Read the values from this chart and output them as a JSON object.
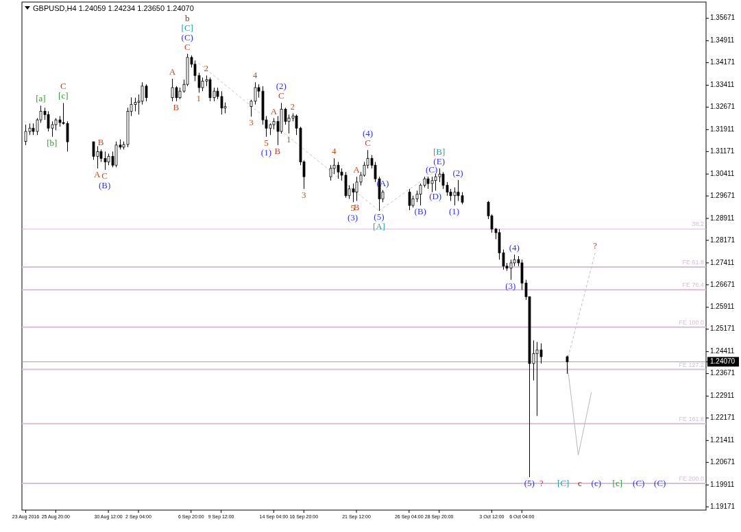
{
  "chart_data": {
    "type": "candlestick",
    "title": "GBPUSD,H4  1.24059 1.24234 1.23650 1.24070",
    "x": [
      "2016-08-23T04:00",
      "2016-08-23T12:00",
      "2016-08-23T20:00",
      "2016-08-24T04:00",
      "2016-08-24T12:00",
      "2016-08-24T20:00",
      "2016-08-25T04:00",
      "2016-08-25T12:00",
      "2016-08-25T20:00",
      "2016-08-26T04:00",
      "2016-08-26T12:00",
      "2016-08-26T20:00",
      "2016-08-29T04:00",
      "2016-08-29T12:00",
      "2016-08-29T20:00",
      "2016-08-30T04:00",
      "2016-08-30T12:00",
      "2016-08-30T20:00",
      "2016-08-31T04:00",
      "2016-08-31T12:00",
      "2016-08-31T20:00",
      "2016-09-01T04:00",
      "2016-09-01T12:00",
      "2016-09-01T20:00",
      "2016-09-02T04:00",
      "2016-09-02T12:00",
      "2016-09-02T20:00",
      "2016-09-05T04:00",
      "2016-09-05T12:00",
      "2016-09-05T20:00",
      "2016-09-06T04:00",
      "2016-09-06T12:00",
      "2016-09-06T20:00",
      "2016-09-07T04:00",
      "2016-09-07T12:00",
      "2016-09-07T20:00",
      "2016-09-08T04:00",
      "2016-09-08T12:00",
      "2016-09-08T20:00",
      "2016-09-09T04:00",
      "2016-09-09T12:00",
      "2016-09-09T20:00",
      "2016-09-12T04:00",
      "2016-09-12T12:00",
      "2016-09-12T20:00",
      "2016-09-13T04:00",
      "2016-09-13T12:00",
      "2016-09-13T20:00",
      "2016-09-14T04:00",
      "2016-09-14T12:00",
      "2016-09-14T20:00",
      "2016-09-15T04:00",
      "2016-09-15T12:00",
      "2016-09-15T20:00",
      "2016-09-16T04:00",
      "2016-09-16T12:00",
      "2016-09-16T20:00",
      "2016-09-19T04:00",
      "2016-09-19T12:00",
      "2016-09-19T20:00",
      "2016-09-20T04:00",
      "2016-09-20T12:00",
      "2016-09-20T20:00",
      "2016-09-21T04:00",
      "2016-09-21T12:00",
      "2016-09-21T20:00",
      "2016-09-22T04:00",
      "2016-09-22T12:00",
      "2016-09-22T20:00",
      "2016-09-23T04:00",
      "2016-09-23T12:00",
      "2016-09-23T20:00",
      "2016-09-26T04:00",
      "2016-09-26T12:00",
      "2016-09-26T20:00",
      "2016-09-27T04:00",
      "2016-09-27T12:00",
      "2016-09-27T20:00",
      "2016-09-28T04:00",
      "2016-09-28T12:00",
      "2016-09-28T20:00",
      "2016-09-29T04:00",
      "2016-09-29T12:00",
      "2016-09-29T20:00",
      "2016-09-30T04:00",
      "2016-09-30T12:00",
      "2016-09-30T20:00",
      "2016-10-03T04:00",
      "2016-10-03T12:00",
      "2016-10-03T20:00",
      "2016-10-04T04:00",
      "2016-10-04T12:00",
      "2016-10-04T20:00",
      "2016-10-05T04:00",
      "2016-10-05T12:00",
      "2016-10-05T20:00",
      "2016-10-06T04:00",
      "2016-10-06T12:00",
      "2016-10-06T20:00",
      "2016-10-07T04:00",
      "2016-10-07T12:00",
      "2016-10-07T20:00",
      "2016-10-10T04:00"
    ],
    "ohlc": [
      [
        1.3151,
        1.3208,
        1.3139,
        1.3185
      ],
      [
        1.3185,
        1.3212,
        1.3173,
        1.3196
      ],
      [
        1.3196,
        1.3212,
        1.3173,
        1.3185
      ],
      [
        1.3185,
        1.323,
        1.3173,
        1.3224
      ],
      [
        1.3224,
        1.3272,
        1.3214,
        1.3253
      ],
      [
        1.3253,
        1.3265,
        1.3224,
        1.3242
      ],
      [
        1.3242,
        1.3253,
        1.3185,
        1.3196
      ],
      [
        1.3196,
        1.3219,
        1.3167,
        1.3208
      ],
      [
        1.3208,
        1.323,
        1.3189,
        1.3224
      ],
      [
        1.3224,
        1.3237,
        1.3201,
        1.3215
      ],
      [
        1.3215,
        1.3281,
        1.3208,
        1.3212
      ],
      [
        1.3212,
        1.3219,
        1.3117,
        1.315
      ],
      [
        1.315,
        1.3151,
        1.3089,
        1.3101
      ],
      [
        1.3101,
        1.3135,
        1.306,
        1.3117
      ],
      [
        1.3117,
        1.3124,
        1.3082,
        1.3094
      ],
      [
        1.3094,
        1.3117,
        1.3055,
        1.3082
      ],
      [
        1.3082,
        1.311,
        1.3071,
        1.3101
      ],
      [
        1.3101,
        1.3117,
        1.3064,
        1.3071
      ],
      [
        1.3071,
        1.3151,
        1.3064,
        1.3139
      ],
      [
        1.3139,
        1.3158,
        1.3124,
        1.3132
      ],
      [
        1.3132,
        1.3151,
        1.3124,
        1.3141
      ],
      [
        1.3141,
        1.3265,
        1.3132,
        1.3253
      ],
      [
        1.3253,
        1.33,
        1.3237,
        1.3276
      ],
      [
        1.3276,
        1.3299,
        1.3253,
        1.3283
      ],
      [
        1.3283,
        1.331,
        1.3242,
        1.3287
      ],
      [
        1.3287,
        1.3351,
        1.3276,
        1.3338
      ],
      [
        1.3338,
        1.3344,
        1.3287,
        1.3299
      ],
      [
        1.3299,
        1.3363,
        1.3287,
        1.3333
      ],
      [
        1.3333,
        1.3338,
        1.3287,
        1.3299
      ],
      [
        1.3299,
        1.3333,
        1.3294,
        1.3321
      ],
      [
        1.3321,
        1.336,
        1.3316,
        1.3344
      ],
      [
        1.3344,
        1.3447,
        1.3338,
        1.3435
      ],
      [
        1.3435,
        1.3442,
        1.3401,
        1.3412
      ],
      [
        1.3412,
        1.3424,
        1.3355,
        1.3374
      ],
      [
        1.3374,
        1.3383,
        1.3316,
        1.3333
      ],
      [
        1.3333,
        1.3367,
        1.3321,
        1.3355
      ],
      [
        1.3355,
        1.3374,
        1.3338,
        1.336
      ],
      [
        1.336,
        1.3367,
        1.3287,
        1.3299
      ],
      [
        1.3299,
        1.3333,
        1.3287,
        1.3321
      ],
      [
        1.3321,
        1.3333,
        1.3294,
        1.3303
      ],
      [
        1.3303,
        1.3321,
        1.3242,
        1.3264
      ],
      [
        1.3264,
        1.3283,
        1.3246,
        1.3269
      ],
      [
        1.3269,
        1.3292,
        1.3235,
        1.3287
      ],
      [
        1.3287,
        1.3351,
        1.3276,
        1.3333
      ],
      [
        1.3333,
        1.3344,
        1.3299,
        1.3321
      ],
      [
        1.3321,
        1.3338,
        1.3208,
        1.3224
      ],
      [
        1.3224,
        1.3237,
        1.3167,
        1.3196
      ],
      [
        1.3196,
        1.3212,
        1.3173,
        1.3208
      ],
      [
        1.3208,
        1.323,
        1.3192,
        1.3219
      ],
      [
        1.3219,
        1.3237,
        1.3139,
        1.3185
      ],
      [
        1.3185,
        1.3281,
        1.3178,
        1.326
      ],
      [
        1.326,
        1.3265,
        1.3208,
        1.3219
      ],
      [
        1.3219,
        1.3242,
        1.3178,
        1.323
      ],
      [
        1.323,
        1.3246,
        1.3219,
        1.3237
      ],
      [
        1.3237,
        1.3242,
        1.3173,
        1.3196
      ],
      [
        1.3196,
        1.3201,
        1.3071,
        1.3082
      ],
      [
        1.3082,
        1.3087,
        1.2991,
        1.3032
      ],
      [
        1.3032,
        1.3071,
        1.3019,
        1.306
      ],
      [
        1.306,
        1.3094,
        1.3041,
        1.3071
      ],
      [
        1.3071,
        1.3082,
        1.3025,
        1.3048
      ],
      [
        1.3048,
        1.306,
        1.3019,
        1.3037
      ],
      [
        1.3037,
        1.3048,
        1.2961,
        1.2968
      ],
      [
        1.2968,
        1.3003,
        1.2957,
        1.2991
      ],
      [
        1.2991,
        1.3009,
        1.2946,
        1.298
      ],
      [
        1.298,
        1.3032,
        1.295,
        1.3014
      ],
      [
        1.3014,
        1.3048,
        1.3003,
        1.3037
      ],
      [
        1.3037,
        1.3082,
        1.3032,
        1.3071
      ],
      [
        1.3071,
        1.3122,
        1.306,
        1.3094
      ],
      [
        1.3094,
        1.3105,
        1.306,
        1.3071
      ],
      [
        1.3071,
        1.3082,
        1.3014,
        1.3025
      ],
      [
        1.3025,
        1.3032,
        1.2917,
        1.2957
      ],
      [
        1.2957,
        1.2987,
        1.2946,
        1.298
      ],
      [
        1.298,
        1.2991,
        1.2919,
        1.2935
      ],
      [
        1.2935,
        1.2968,
        1.2928,
        1.2957
      ],
      [
        1.2957,
        1.2985,
        1.2946,
        1.2973
      ],
      [
        1.2973,
        1.3009,
        1.2935,
        1.3003
      ],
      [
        1.3003,
        1.3032,
        1.2996,
        1.3025
      ],
      [
        1.3025,
        1.3032,
        1.2991,
        1.3009
      ],
      [
        1.3009,
        1.3032,
        1.298,
        1.3019
      ],
      [
        1.3019,
        1.3041,
        1.2985,
        1.3032
      ],
      [
        1.3032,
        1.306,
        1.3014,
        1.3041
      ],
      [
        1.3041,
        1.3048,
        1.2991,
        1.3003
      ],
      [
        1.3003,
        1.3014,
        1.2968,
        1.298
      ],
      [
        1.298,
        1.2991,
        1.295,
        1.2968
      ],
      [
        1.2968,
        1.2996,
        1.2935,
        1.298
      ],
      [
        1.298,
        1.3021,
        1.295,
        1.2968
      ],
      [
        1.2968,
        1.298,
        1.2939,
        1.2946
      ],
      [
        1.2946,
        1.295,
        1.2889,
        1.29
      ],
      [
        1.29,
        1.2905,
        1.2843,
        1.2855
      ],
      [
        1.2855,
        1.2859,
        1.2821,
        1.2843
      ],
      [
        1.2843,
        1.2855,
        1.2752,
        1.2775
      ],
      [
        1.2775,
        1.2786,
        1.2718,
        1.273
      ],
      [
        1.273,
        1.2741,
        1.2714,
        1.2723
      ],
      [
        1.2723,
        1.2752,
        1.2684,
        1.2741
      ],
      [
        1.2741,
        1.2769,
        1.273,
        1.2752
      ],
      [
        1.2752,
        1.2764,
        1.273,
        1.2741
      ],
      [
        1.2741,
        1.2752,
        1.265,
        1.2673
      ],
      [
        1.2673,
        1.2684,
        1.2616,
        1.2627
      ],
      [
        1.2627,
        1.2627,
        1.2017,
        1.2401
      ],
      [
        1.2401,
        1.2479,
        1.2344,
        1.2435
      ],
      [
        1.2435,
        1.2474,
        1.2224,
        1.2447
      ],
      [
        1.2447,
        1.2469,
        1.2401,
        1.2424
      ],
      [
        1.2424,
        1.2428,
        1.2366,
        1.2407
      ]
    ],
    "xlim": [
      "2016-08-22T20:00",
      "2016-10-22T12:00"
    ],
    "xticks": [
      {
        "value": "2016-08-23T04:00",
        "label": "23 Aug 2016"
      },
      {
        "value": "2016-08-25T20:00",
        "label": "25 Aug 20:00"
      },
      {
        "value": "2016-08-30T12:00",
        "label": "30 Aug 12:00"
      },
      {
        "value": "2016-09-02T04:00",
        "label": "2 Sep 04:00"
      },
      {
        "value": "2016-09-06T20:00",
        "label": "6 Sep 20:00"
      },
      {
        "value": "2016-09-09T12:00",
        "label": "9 Sep 12:00"
      },
      {
        "value": "2016-09-14T04:00",
        "label": "14 Sep 04:00"
      },
      {
        "value": "2016-09-16T20:00",
        "label": "16 Sep 20:00"
      },
      {
        "value": "2016-09-21T12:00",
        "label": "21 Sep 12:00"
      },
      {
        "value": "2016-09-26T04:00",
        "label": "26 Sep 04:00"
      },
      {
        "value": "2016-09-28T20:00",
        "label": "28 Sep 20:00"
      },
      {
        "value": "2016-10-03T12:00",
        "label": "3 Oct 12:00"
      },
      {
        "value": "2016-10-06T04:00",
        "label": "6 Oct 04:00"
      }
    ],
    "ylim": [
      1.1906,
      1.3622
    ],
    "yticks": [
      1.35671,
      1.34911,
      1.34171,
      1.33411,
      1.32671,
      1.31911,
      1.31171,
      1.30411,
      1.29671,
      1.28911,
      1.28171,
      1.27411,
      1.26671,
      1.25911,
      1.25171,
      1.24411,
      {
        "value": 1.2407,
        "label": "1.24070"
      },
      1.23671,
      1.22911,
      1.22171,
      1.21411,
      1.20671,
      1.19911,
      1.19171
    ],
    "ref_lines": [
      {
        "axis": "y",
        "value": 1.2855,
        "color": "#d8bfd8"
      },
      {
        "axis": "y",
        "value": 1.2727,
        "label": "FE 61.8",
        "color": "#d8bfd8"
      },
      {
        "axis": "y",
        "value": 1.265,
        "label": "FE 76.4",
        "color": "#d8bfd8"
      },
      {
        "axis": "y",
        "value": 1.2524,
        "label": "FE 100.0",
        "color": "#d8bfd8"
      },
      {
        "axis": "y",
        "value": 1.2381,
        "label": "FE 127.2",
        "color": "#d8bfd8"
      },
      {
        "axis": "y",
        "value": 1.2198,
        "label": "FE 161.8",
        "color": "#d8bfd8"
      },
      {
        "axis": "y",
        "value": 1.1996,
        "label": "FE 200.0",
        "color": "#d8bfd8"
      },
      {
        "axis": "y",
        "value": 1.2407,
        "color": "#a0a0a0"
      }
    ],
    "series": [
      {
        "type": "line",
        "color": "#c8c8c8",
        "line_style": "dashed",
        "x": [
          "2016-09-06T12:00",
          "2016-09-23T12:00"
        ],
        "values": [
          1.3447,
          1.2917
        ]
      },
      {
        "type": "line",
        "color": "#c8c8c8",
        "line_style": "dashed",
        "x": [
          "2016-09-23T12:00",
          "2016-09-28T20:00"
        ],
        "values": [
          1.2917,
          1.306
        ]
      },
      {
        "type": "line",
        "color": "#c0c0c0",
        "line_style": "dashed",
        "x": [
          "2016-10-10T04:00",
          "2016-10-12T16:00"
        ],
        "values": [
          1.2407,
          1.2775
        ]
      },
      {
        "type": "line",
        "color": "#b8b8b8",
        "line_style": "solid",
        "x": [
          "2016-10-10T04:00",
          "2016-10-11T04:00",
          "2016-10-12T08:00"
        ],
        "values": [
          1.2407,
          1.2092,
          1.2304
        ]
      }
    ],
    "annotations": [
      {
        "text": "[a]",
        "x": "2016-08-24T12:00",
        "y": 1.3272
      },
      {
        "text": "[b]",
        "x": "2016-08-25T12:00",
        "y": 1.3167
      },
      {
        "text": "C\n[c]",
        "x": "2016-08-26T12:00",
        "y": 1.3281
      },
      {
        "text": "A",
        "x": "2016-08-29T12:00",
        "y": 1.306
      },
      {
        "text": "B",
        "x": "2016-08-29T20:00",
        "y": 1.3124
      },
      {
        "text": "C\n(B)",
        "x": "2016-08-30T04:00",
        "y": 1.3055
      },
      {
        "text": "A",
        "x": "2016-09-05T04:00",
        "y": 1.3363
      },
      {
        "text": "B",
        "x": "2016-09-05T12:00",
        "y": 1.3287
      },
      {
        "text": "b\n[C]\n(C)\nC",
        "x": "2016-09-06T12:00",
        "y": 1.3447
      },
      {
        "text": "1",
        "x": "2016-09-07T12:00",
        "y": 1.3316
      },
      {
        "text": "2",
        "x": "2016-09-08T04:00",
        "y": 1.3374
      },
      {
        "text": "3",
        "x": "2016-09-12T04:00",
        "y": 1.3235
      },
      {
        "text": "4",
        "x": "2016-09-12T12:00",
        "y": 1.3351
      },
      {
        "text": "5\n(1)",
        "x": "2016-09-13T12:00",
        "y": 1.3167
      },
      {
        "text": "A",
        "x": "2016-09-14T04:00",
        "y": 1.323
      },
      {
        "text": "B",
        "x": "2016-09-14T12:00",
        "y": 1.3139
      },
      {
        "text": "(2)\nC",
        "x": "2016-09-14T20:00",
        "y": 1.3281
      },
      {
        "text": "1",
        "x": "2016-09-15T12:00",
        "y": 1.3178
      },
      {
        "text": "2",
        "x": "2016-09-15T20:00",
        "y": 1.3246
      },
      {
        "text": "3",
        "x": "2016-09-16T20:00",
        "y": 1.2991
      },
      {
        "text": "4",
        "x": "2016-09-19T12:00",
        "y": 1.3094
      },
      {
        "text": "5\n(3)",
        "x": "2016-09-21T04:00",
        "y": 1.2946
      },
      {
        "text": "A",
        "x": "2016-09-21T12:00",
        "y": 1.3032
      },
      {
        "text": "B",
        "x": "2016-09-21T12:00",
        "y": 1.295
      },
      {
        "text": "(4)\nC",
        "x": "2016-09-22T12:00",
        "y": 1.3122
      },
      {
        "text": "(5)\n[A]",
        "x": "2016-09-23T12:00",
        "y": 1.2917
      },
      {
        "text": "(A)",
        "x": "2016-09-23T20:00",
        "y": 1.2987
      },
      {
        "text": "(B)",
        "x": "2016-09-27T04:00",
        "y": 1.2935
      },
      {
        "text": "(C)",
        "x": "2016-09-28T04:00",
        "y": 1.3032
      },
      {
        "text": "(D)",
        "x": "2016-09-28T12:00",
        "y": 1.2985
      },
      {
        "text": "[B]\n(E)",
        "x": "2016-09-28T20:00",
        "y": 1.306
      },
      {
        "text": "(1)",
        "x": "2016-09-30T04:00",
        "y": 1.2935
      },
      {
        "text": "(2)",
        "x": "2016-09-30T12:00",
        "y": 1.3021
      },
      {
        "text": "(3)",
        "x": "2016-10-05T04:00",
        "y": 1.2684
      },
      {
        "text": "(4)",
        "x": "2016-10-05T12:00",
        "y": 1.2769
      },
      {
        "text": "(5)",
        "x": "2016-10-06T20:00",
        "y": 1.2017
      },
      {
        "text": "?",
        "x": "2016-10-12T16:00",
        "y": 1.2775
      },
      {
        "text": "38.2",
        "y": 1.2855
      },
      "?",
      "[C]",
      "c",
      "(c)",
      "[c]",
      "(C)",
      "(C)"
    ]
  }
}
